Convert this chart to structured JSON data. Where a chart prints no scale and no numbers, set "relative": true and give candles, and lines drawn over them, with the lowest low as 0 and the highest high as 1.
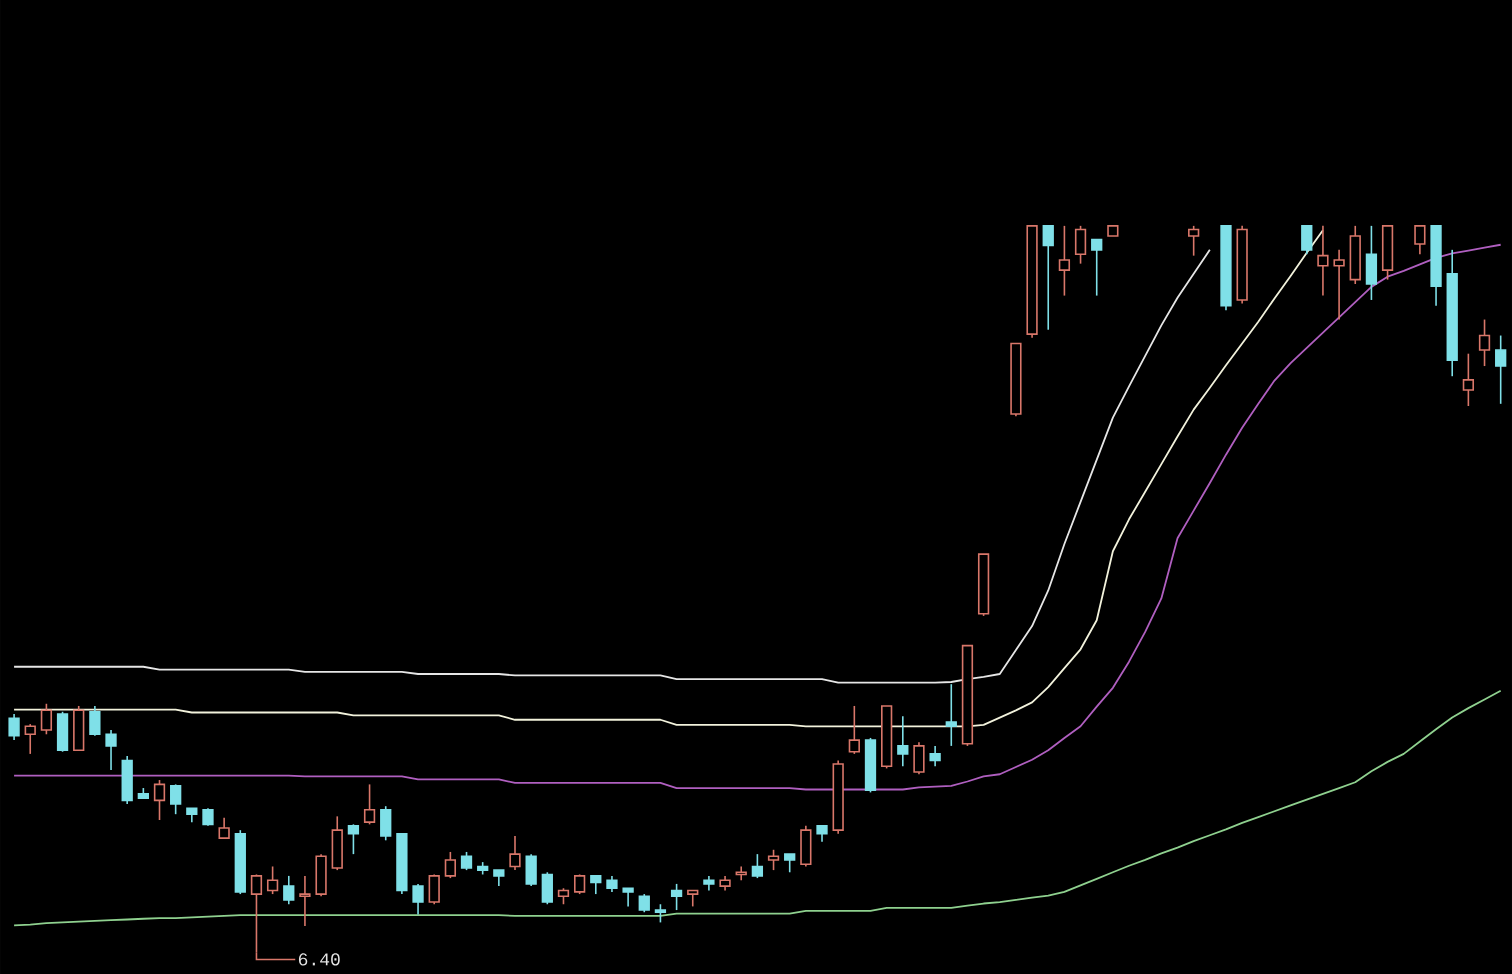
{
  "chart_data": {
    "type": "candlestick",
    "relative": true,
    "categories": [
      null,
      null,
      null,
      null,
      null,
      null,
      null,
      null,
      null,
      null,
      null,
      null,
      null,
      null,
      null,
      null,
      null,
      null,
      null,
      null,
      null,
      null,
      null,
      null,
      null,
      null,
      null,
      null,
      null,
      null,
      null,
      null,
      null,
      null,
      null,
      null,
      null,
      null,
      null,
      null,
      null,
      null,
      null,
      null,
      null,
      null,
      null,
      null,
      null,
      null,
      null,
      null,
      null,
      null,
      null,
      null,
      null,
      null,
      null,
      null,
      null,
      null,
      null,
      null,
      null,
      null,
      null,
      null,
      null,
      null,
      null,
      null,
      null,
      null,
      null,
      null,
      null,
      null,
      null,
      null,
      null,
      null,
      null,
      null,
      null,
      null,
      null,
      null,
      null,
      null,
      null,
      null,
      null
    ],
    "ohlc": [
      [
        0.322,
        0.328,
        0.292,
        0.298
      ],
      [
        0.3,
        0.314,
        0.273,
        0.311
      ],
      [
        0.306,
        0.342,
        0.3,
        0.333
      ],
      [
        0.328,
        0.331,
        0.276,
        0.278
      ],
      [
        0.278,
        0.339,
        0.278,
        0.333
      ],
      [
        0.331,
        0.339,
        0.298,
        0.3
      ],
      [
        0.3,
        0.306,
        0.251,
        0.284
      ],
      [
        0.264,
        0.27,
        0.204,
        0.209
      ],
      [
        0.218,
        0.226,
        0.212,
        0.212
      ],
      [
        0.209,
        0.237,
        0.182,
        0.231
      ],
      [
        0.229,
        0.231,
        0.19,
        0.204
      ],
      [
        0.198,
        0.198,
        0.179,
        0.19
      ],
      [
        0.196,
        0.198,
        0.174,
        0.176
      ],
      [
        0.157,
        0.185,
        0.157,
        0.171
      ],
      [
        0.163,
        0.168,
        0.08,
        0.083
      ],
      [
        0.08,
        0.107,
        0,
        0.105
      ],
      [
        0.085,
        0.118,
        0.08,
        0.099
      ],
      [
        0.091,
        0.105,
        0.066,
        0.072
      ],
      [
        0.077,
        0.105,
        0.036,
        0.08
      ],
      [
        0.08,
        0.135,
        0.077,
        0.132
      ],
      [
        0.116,
        0.187,
        0.113,
        0.168
      ],
      [
        0.174,
        0.176,
        0.135,
        0.163
      ],
      [
        0.179,
        0.231,
        0.176,
        0.196
      ],
      [
        0.196,
        0.201,
        0.154,
        0.16
      ],
      [
        0.163,
        0.163,
        0.08,
        0.085
      ],
      [
        0.091,
        0.094,
        0.052,
        0.069
      ],
      [
        0.069,
        0.107,
        0.066,
        0.105
      ],
      [
        0.105,
        0.138,
        0.102,
        0.127
      ],
      [
        0.132,
        0.138,
        0.113,
        0.116
      ],
      [
        0.118,
        0.124,
        0.107,
        0.113
      ],
      [
        0.113,
        0.113,
        0.091,
        0.105
      ],
      [
        0.118,
        0.16,
        0.113,
        0.135
      ],
      [
        0.132,
        0.135,
        0.091,
        0.094
      ],
      [
        0.107,
        0.11,
        0.066,
        0.069
      ],
      [
        0.077,
        0.088,
        0.066,
        0.085
      ],
      [
        0.083,
        0.107,
        0.08,
        0.105
      ],
      [
        0.105,
        0.105,
        0.08,
        0.096
      ],
      [
        0.099,
        0.105,
        0.083,
        0.088
      ],
      [
        0.088,
        0.088,
        0.063,
        0.083
      ],
      [
        0.077,
        0.08,
        0.055,
        0.058
      ],
      [
        0.058,
        0.066,
        0.041,
        0.055
      ],
      [
        0.085,
        0.094,
        0.058,
        0.077
      ],
      [
        0.08,
        0.085,
        0.063,
        0.085
      ],
      [
        0.099,
        0.105,
        0.085,
        0.094
      ],
      [
        0.091,
        0.105,
        0.085,
        0.099
      ],
      [
        0.107,
        0.118,
        0.099,
        0.11
      ],
      [
        0.118,
        0.135,
        0.102,
        0.105
      ],
      [
        0.127,
        0.141,
        0.113,
        0.132
      ],
      [
        0.135,
        0.135,
        0.11,
        0.127
      ],
      [
        0.121,
        0.174,
        0.118,
        0.168
      ],
      [
        0.174,
        0.174,
        0.152,
        0.163
      ],
      [
        0.168,
        0.264,
        0.163,
        0.259
      ],
      [
        0.276,
        0.339,
        0.273,
        0.292
      ],
      [
        0.292,
        0.295,
        0.22,
        0.223
      ],
      [
        0.256,
        0.339,
        0.253,
        0.339
      ],
      [
        0.284,
        0.325,
        0.256,
        0.273
      ],
      [
        0.248,
        0.289,
        0.245,
        0.284
      ],
      [
        0.273,
        0.284,
        0.256,
        0.264
      ],
      [
        0.317,
        0.369,
        0.284,
        0.311
      ],
      [
        0.287,
        0.422,
        0.284,
        0.422
      ],
      [
        0.466,
        0.548,
        0.463,
        0.548
      ],
      null,
      [
        0.741,
        0.838,
        0.738,
        0.838
      ],
      [
        0.851,
        1,
        0.846,
        1
      ],
      [
        1,
        1,
        0.857,
        0.973
      ],
      [
        0.939,
        1,
        0.904,
        0.953
      ],
      [
        0.961,
        1,
        0.948,
        0.995
      ],
      [
        0.981,
        0.981,
        0.904,
        0.967
      ],
      [
        0.986,
        1,
        0.986,
        1
      ],
      null,
      null,
      null,
      null,
      [
        0.986,
        1,
        0.959,
        0.995
      ],
      null,
      [
        1,
        1,
        0.884,
        0.89
      ],
      [
        0.898,
        1,
        0.893,
        0.995
      ],
      null,
      null,
      null,
      [
        1,
        1,
        0.961,
        0.967
      ],
      [
        0.945,
        1,
        0.904,
        0.959
      ],
      [
        0.945,
        0.967,
        0.871,
        0.953
      ],
      [
        0.926,
        1,
        0.92,
        0.986
      ],
      [
        0.961,
        1,
        0.898,
        0.92
      ],
      [
        0.939,
        1,
        0.926,
        1
      ],
      null,
      [
        0.975,
        1,
        0.961,
        1
      ],
      [
        1,
        1,
        0.89,
        0.917
      ],
      [
        0.934,
        0.967,
        0.793,
        0.815
      ],
      [
        0.774,
        0.824,
        0.752,
        0.788
      ],
      [
        0.829,
        0.871,
        0.807,
        0.849
      ],
      [
        0.829,
        0.849,
        0.755,
        0.807
      ]
    ],
    "colors": [
      "#7fe0e8",
      "#d9776a",
      "#d9776a",
      "#7fe0e8",
      "#d9776a",
      "#7fe0e8",
      "#7fe0e8",
      "#7fe0e8",
      "#7fe0e8",
      "#d9776a",
      "#7fe0e8",
      "#7fe0e8",
      "#7fe0e8",
      "#d9776a",
      "#7fe0e8",
      "#d9776a",
      "#d9776a",
      "#7fe0e8",
      "#d9776a",
      "#d9776a",
      "#d9776a",
      "#7fe0e8",
      "#d9776a",
      "#7fe0e8",
      "#7fe0e8",
      "#7fe0e8",
      "#d9776a",
      "#d9776a",
      "#7fe0e8",
      "#7fe0e8",
      "#7fe0e8",
      "#d9776a",
      "#7fe0e8",
      "#7fe0e8",
      "#d9776a",
      "#d9776a",
      "#7fe0e8",
      "#7fe0e8",
      "#7fe0e8",
      "#7fe0e8",
      "#7fe0e8",
      "#7fe0e8",
      "#d9776a",
      "#7fe0e8",
      "#d9776a",
      "#d9776a",
      "#7fe0e8",
      "#d9776a",
      "#7fe0e8",
      "#d9776a",
      "#7fe0e8",
      "#d9776a",
      "#d9776a",
      "#7fe0e8",
      "#d9776a",
      "#7fe0e8",
      "#d9776a",
      "#7fe0e8",
      "#7fe0e8",
      "#d9776a",
      "#d9776a",
      null,
      "#d9776a",
      "#d9776a",
      "#7fe0e8",
      "#d9776a",
      "#d9776a",
      "#7fe0e8",
      "#d9776a",
      null,
      null,
      null,
      null,
      "#d9776a",
      null,
      "#7fe0e8",
      "#d9776a",
      null,
      null,
      null,
      "#7fe0e8",
      "#d9776a",
      "#d9776a",
      "#d9776a",
      "#7fe0e8",
      "#d9776a",
      null,
      "#d9776a",
      "#7fe0e8",
      "#7fe0e8",
      "#d9776a",
      "#d9776a",
      "#7fe0e8"
    ],
    "series": [
      {
        "type": "line",
        "color": "#e6e6e6",
        "values": [
          0.393,
          0.393,
          0.393,
          0.393,
          0.393,
          0.393,
          0.393,
          0.393,
          0.393,
          0.389,
          0.389,
          0.389,
          0.389,
          0.389,
          0.389,
          0.389,
          0.389,
          0.389,
          0.386,
          0.386,
          0.386,
          0.386,
          0.386,
          0.386,
          0.386,
          0.383,
          0.383,
          0.383,
          0.383,
          0.383,
          0.383,
          0.381,
          0.381,
          0.381,
          0.381,
          0.381,
          0.381,
          0.381,
          0.381,
          0.381,
          0.381,
          0.376,
          0.376,
          0.376,
          0.376,
          0.376,
          0.376,
          0.376,
          0.376,
          0.376,
          0.376,
          0.371,
          0.371,
          0.371,
          0.371,
          0.371,
          0.371,
          0.371,
          0.372,
          0.376,
          0.379,
          0.383,
          0.416,
          0.449,
          0.498,
          0.562,
          0.62,
          0.678,
          0.736,
          0.779,
          0.821,
          0.863,
          0.901,
          0.934,
          0.967,
          null,
          null,
          null,
          null,
          null,
          null,
          null,
          null,
          null,
          null,
          null,
          null,
          null,
          null,
          null,
          null,
          null,
          null
        ]
      },
      {
        "type": "line",
        "color": "#f2f2dc",
        "values": [
          0.334,
          0.334,
          0.334,
          0.334,
          0.334,
          0.334,
          0.334,
          0.334,
          0.334,
          0.334,
          0.334,
          0.33,
          0.33,
          0.33,
          0.33,
          0.33,
          0.33,
          0.33,
          0.33,
          0.33,
          0.33,
          0.326,
          0.326,
          0.326,
          0.326,
          0.326,
          0.326,
          0.326,
          0.326,
          0.326,
          0.326,
          0.32,
          0.32,
          0.32,
          0.32,
          0.32,
          0.32,
          0.32,
          0.32,
          0.32,
          0.32,
          0.313,
          0.313,
          0.313,
          0.313,
          0.313,
          0.313,
          0.313,
          0.313,
          0.311,
          0.311,
          0.311,
          0.311,
          0.311,
          0.311,
          0.311,
          0.311,
          0.311,
          0.311,
          0.311,
          0.313,
          0.323,
          0.333,
          0.344,
          0.365,
          0.391,
          0.417,
          0.457,
          0.552,
          0.596,
          0.634,
          0.672,
          0.71,
          0.747,
          0.777,
          0.808,
          0.838,
          0.868,
          0.9,
          0.931,
          0.963,
          0.994,
          null,
          null,
          null,
          null,
          null,
          null,
          null,
          null,
          null,
          null,
          null
        ]
      },
      {
        "type": "line",
        "color": "#b05fc0",
        "values": [
          0.243,
          0.243,
          0.243,
          0.243,
          0.243,
          0.243,
          0.243,
          0.243,
          0.243,
          0.243,
          0.243,
          0.243,
          0.243,
          0.243,
          0.243,
          0.243,
          0.243,
          0.243,
          0.242,
          0.242,
          0.242,
          0.242,
          0.242,
          0.242,
          0.242,
          0.238,
          0.238,
          0.238,
          0.238,
          0.238,
          0.238,
          0.233,
          0.233,
          0.233,
          0.233,
          0.233,
          0.233,
          0.233,
          0.233,
          0.233,
          0.233,
          0.226,
          0.226,
          0.226,
          0.226,
          0.226,
          0.226,
          0.226,
          0.226,
          0.224,
          0.224,
          0.224,
          0.224,
          0.224,
          0.224,
          0.224,
          0.227,
          0.228,
          0.229,
          0.235,
          0.242,
          0.245,
          0.255,
          0.265,
          0.278,
          0.295,
          0.311,
          0.338,
          0.364,
          0.4,
          0.441,
          0.487,
          0.57,
          0.608,
          0.646,
          0.685,
          0.722,
          0.755,
          0.787,
          0.811,
          0.832,
          0.853,
          0.874,
          0.895,
          0.916,
          0.93,
          0.938,
          0.947,
          0.956,
          0.962,
          0.966,
          0.97,
          0.974
        ]
      },
      {
        "type": "line",
        "color": "#8fd18f",
        "values": [
          0.037,
          0.038,
          0.04,
          0.041,
          0.042,
          0.043,
          0.044,
          0.045,
          0.046,
          0.047,
          0.047,
          0.048,
          0.049,
          0.05,
          0.051,
          0.051,
          0.051,
          0.051,
          0.051,
          0.051,
          0.051,
          0.051,
          0.051,
          0.051,
          0.051,
          0.051,
          0.051,
          0.051,
          0.051,
          0.051,
          0.051,
          0.05,
          0.05,
          0.05,
          0.05,
          0.05,
          0.05,
          0.05,
          0.05,
          0.05,
          0.05,
          0.053,
          0.053,
          0.053,
          0.053,
          0.053,
          0.053,
          0.053,
          0.053,
          0.057,
          0.057,
          0.057,
          0.057,
          0.057,
          0.061,
          0.061,
          0.061,
          0.061,
          0.061,
          0.064,
          0.067,
          0.069,
          0.072,
          0.075,
          0.078,
          0.083,
          0.092,
          0.101,
          0.11,
          0.119,
          0.127,
          0.136,
          0.144,
          0.153,
          0.161,
          0.169,
          0.178,
          0.186,
          0.194,
          0.202,
          0.21,
          0.218,
          0.226,
          0.234,
          0.249,
          0.262,
          0.273,
          0.29,
          0.307,
          0.323,
          0.336,
          0.348,
          0.36
        ]
      }
    ],
    "annotations": [
      "6.40"
    ]
  }
}
